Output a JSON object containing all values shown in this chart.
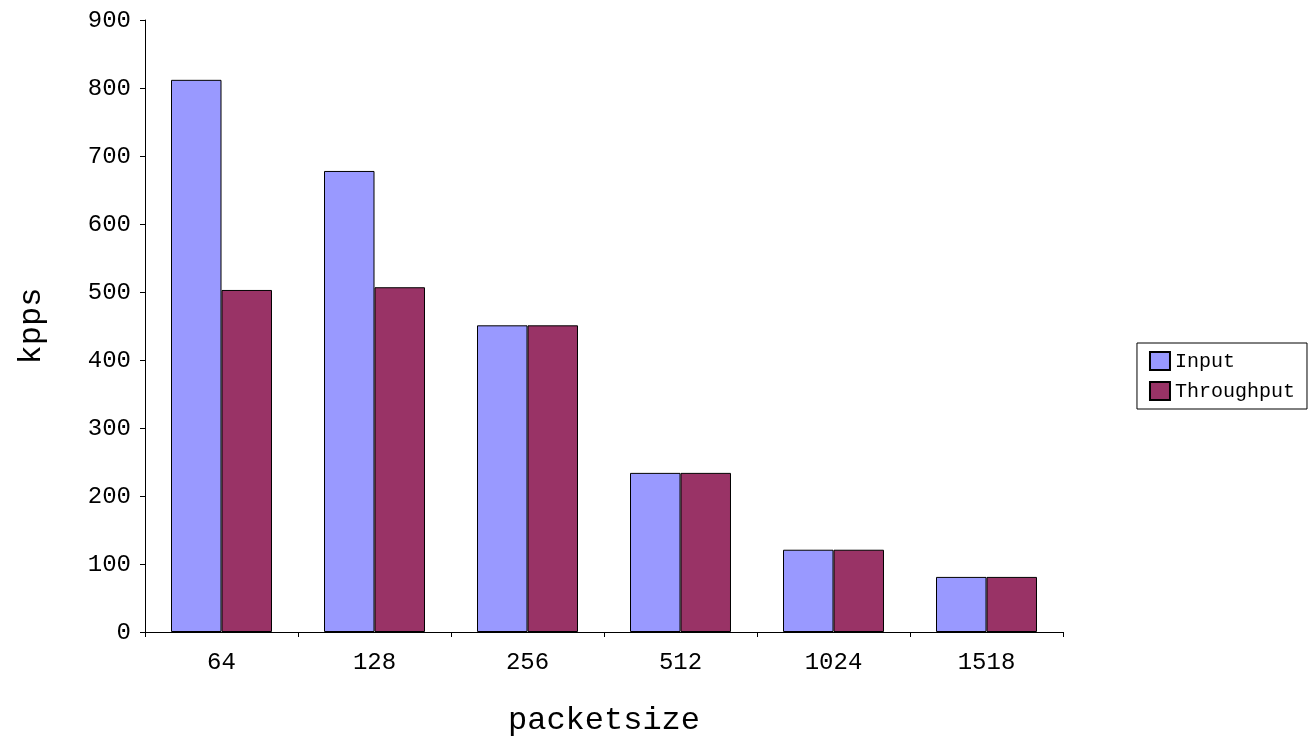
{
  "chart_data": {
    "type": "bar",
    "xlabel": "packetsize",
    "ylabel": "kpps",
    "categories": [
      "64",
      "128",
      "256",
      "512",
      "1024",
      "1518"
    ],
    "series": [
      {
        "name": "Input",
        "color": "#9999ff",
        "values": [
          812,
          678,
          451,
          234,
          121,
          81
        ]
      },
      {
        "name": "Throughput",
        "color": "#993366",
        "values": [
          503,
          507,
          451,
          234,
          121,
          81
        ]
      }
    ],
    "ylim": [
      0,
      900
    ],
    "yticks": [
      0,
      100,
      200,
      300,
      400,
      500,
      600,
      700,
      800,
      900
    ],
    "grid": false,
    "legend": "right"
  }
}
